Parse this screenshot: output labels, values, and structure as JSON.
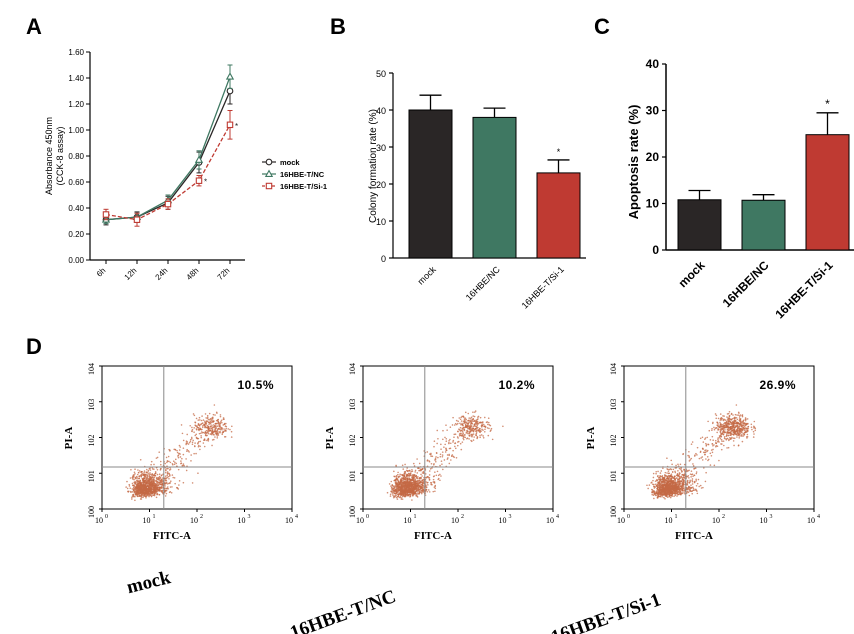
{
  "panels": {
    "A": "A",
    "B": "B",
    "C": "C",
    "D": "D"
  },
  "colors": {
    "mock": "#2a2626",
    "nc": "#3f7862",
    "si": "#bf3a32",
    "dot": "#c46a45"
  },
  "chart_data": [
    {
      "id": "A",
      "type": "line",
      "categories": [
        "6h",
        "12h",
        "24h",
        "48h",
        "72h"
      ],
      "ylabel_line1": "Absorbance 450nm",
      "ylabel_line2": "(CCK-8 assay)",
      "ylim": [
        0,
        1.6
      ],
      "yticks": [
        "0.00",
        "0.20",
        "0.40",
        "0.60",
        "0.80",
        "1.00",
        "1.20",
        "1.40",
        "1.60"
      ],
      "legend_position": "right",
      "series": [
        {
          "name": "mock",
          "values": [
            0.31,
            0.33,
            0.44,
            0.75,
            1.3
          ],
          "errors": [
            0.04,
            0.04,
            0.05,
            0.08,
            0.1
          ],
          "marker": "circle",
          "color": "#2a2626",
          "dashed": false
        },
        {
          "name": "16HBE-T/NC",
          "values": [
            0.31,
            0.33,
            0.46,
            0.77,
            1.41
          ],
          "errors": [
            0.03,
            0.03,
            0.04,
            0.07,
            0.09
          ],
          "marker": "triangle",
          "color": "#3f7862",
          "dashed": false
        },
        {
          "name": "16HBE-T/Si-1",
          "values": [
            0.35,
            0.31,
            0.43,
            0.61,
            1.04
          ],
          "errors": [
            0.04,
            0.05,
            0.04,
            0.04,
            0.11
          ],
          "marker": "square",
          "color": "#bf3a32",
          "dashed": true
        }
      ],
      "annotations": [
        {
          "x": "48h",
          "text": "*"
        },
        {
          "x": "72h",
          "text": "*"
        }
      ]
    },
    {
      "id": "B",
      "type": "bar",
      "categories": [
        "mock",
        "16HBE/NC",
        "16HBE-T/Si-1"
      ],
      "values": [
        40,
        38,
        23
      ],
      "errors": [
        4,
        2.5,
        3.5
      ],
      "ylabel": "Colony formation rate (%)",
      "ylim": [
        0,
        50
      ],
      "yticks": [
        "0",
        "10",
        "20",
        "30",
        "40",
        "50"
      ],
      "colors": [
        "#2a2626",
        "#3f7862",
        "#bf3a32"
      ],
      "annotations": [
        {
          "category": "16HBE-T/Si-1",
          "text": "*"
        }
      ]
    },
    {
      "id": "C",
      "type": "bar",
      "categories": [
        "mock",
        "16HBE/NC",
        "16HBE-T/Si-1"
      ],
      "values": [
        10.8,
        10.7,
        24.8
      ],
      "errors": [
        2.0,
        1.2,
        4.7
      ],
      "ylabel": "Apoptosis rate (%)",
      "ylim": [
        0,
        40
      ],
      "yticks": [
        "0",
        "10",
        "20",
        "30",
        "40"
      ],
      "colors": [
        "#2a2626",
        "#3f7862",
        "#bf3a32"
      ],
      "annotations": [
        {
          "category": "16HBE-T/Si-1",
          "text": "*"
        }
      ]
    },
    {
      "id": "D",
      "type": "scatter",
      "xlabel": "FITC-A",
      "ylabel": "PI-A",
      "scale": "log",
      "xlim": [
        1,
        10000
      ],
      "ylim": [
        1,
        10000
      ],
      "plots": [
        {
          "percent": "10.5%",
          "caption": "mock",
          "gate_x": 20,
          "gate_y": 15
        },
        {
          "percent": "10.2%",
          "caption": "16HBE-T/NC",
          "gate_x": 20,
          "gate_y": 15
        },
        {
          "percent": "26.9%",
          "caption": "16HBE-T/Si-1",
          "gate_x": 20,
          "gate_y": 15
        }
      ]
    }
  ]
}
